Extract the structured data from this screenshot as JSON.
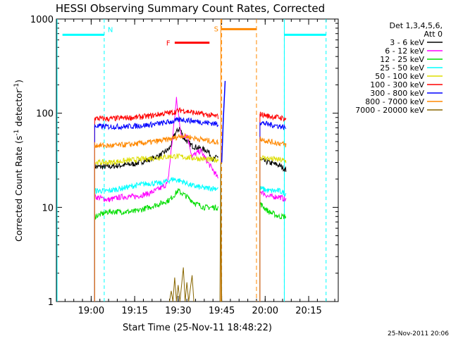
{
  "chart_data": {
    "type": "line",
    "title": "HESSI Observing Summary Count Rates, Corrected",
    "xlabel": "Start Time (25-Nov-11 18:48:22)",
    "ylabel_main": "Corrected Count Rate (s",
    "ylabel_sup1": "-1",
    "ylabel_mid": " detector",
    "ylabel_sup2": "-1",
    "ylabel_end": ")",
    "yscale": "log",
    "ylim": [
      1,
      1000
    ],
    "xlim_minutes": [
      18.8,
      20.42
    ],
    "x_ticks": [
      {
        "label": "19:00",
        "t": 19.0
      },
      {
        "label": "19:15",
        "t": 19.25
      },
      {
        "label": "19:30",
        "t": 19.5
      },
      {
        "label": "19:45",
        "t": 19.75
      },
      {
        "label": "20:00",
        "t": 20.0
      },
      {
        "label": "20:15",
        "t": 20.25
      }
    ],
    "y_ticks": [
      {
        "label": "1",
        "v": 1
      },
      {
        "label": "10",
        "v": 10
      },
      {
        "label": "100",
        "v": 100
      },
      {
        "label": "1000",
        "v": 1000
      }
    ],
    "legend": {
      "placement": "right",
      "header": [
        "Det 1,3,4,5,6,",
        "Att 0"
      ],
      "entries": [
        {
          "label": "3 - 6 keV",
          "color": "#000000"
        },
        {
          "label": "6 - 12 keV",
          "color": "#ff00ff"
        },
        {
          "label": "12 - 25 keV",
          "color": "#00dd00"
        },
        {
          "label": "25 - 50 keV",
          "color": "#00ffff"
        },
        {
          "label": "50 - 100 keV",
          "color": "#dddd00"
        },
        {
          "label": "100 - 300 keV",
          "color": "#ff0000"
        },
        {
          "label": "300 - 800 keV",
          "color": "#0000ff"
        },
        {
          "label": "800 - 7000 keV",
          "color": "#ff8800"
        },
        {
          "label": "7000 - 20000 keV",
          "color": "#886600"
        }
      ]
    },
    "annotations": {
      "N_label": "N",
      "F_label": "F",
      "S_label": "S",
      "night_segments": [
        [
          18.835,
          19.075
        ],
        [
          20.11,
          20.35
        ]
      ],
      "night_boundaries": [
        19.075,
        20.11,
        20.35
      ],
      "flare_segment": [
        19.48,
        19.68
      ],
      "saa_segment": [
        19.75,
        19.95
      ],
      "saa_boundaries": [
        19.75,
        19.95
      ],
      "night_level": 680,
      "saa_level": 780,
      "flare_level": 560
    },
    "series": [
      {
        "name": "3 - 6 keV",
        "color": "#000000",
        "segments": [
          [
            [
              19.02,
              27
            ],
            [
              19.1,
              27
            ],
            [
              19.18,
              28
            ],
            [
              19.25,
              29
            ],
            [
              19.33,
              32
            ],
            [
              19.4,
              36
            ],
            [
              19.45,
              42
            ],
            [
              19.48,
              60
            ],
            [
              19.51,
              70
            ],
            [
              19.53,
              55
            ],
            [
              19.58,
              45
            ],
            [
              19.63,
              42
            ],
            [
              19.67,
              40
            ],
            [
              19.7,
              32
            ],
            [
              19.73,
              35
            ]
          ],
          [
            [
              19.97,
              32
            ],
            [
              20.02,
              30
            ],
            [
              20.08,
              28
            ],
            [
              20.12,
              25
            ]
          ]
        ]
      },
      {
        "name": "6 - 12 keV",
        "color": "#ff00ff",
        "segments": [
          [
            [
              19.02,
              13
            ],
            [
              19.1,
              12
            ],
            [
              19.18,
              13
            ],
            [
              19.25,
              13
            ],
            [
              19.33,
              14
            ],
            [
              19.4,
              16
            ],
            [
              19.44,
              18
            ],
            [
              19.47,
              60
            ],
            [
              19.49,
              140
            ],
            [
              19.52,
              55
            ],
            [
              19.55,
              60
            ],
            [
              19.58,
              35
            ],
            [
              19.63,
              40
            ],
            [
              19.67,
              30
            ],
            [
              19.7,
              25
            ],
            [
              19.73,
              20
            ]
          ],
          [
            [
              19.97,
              15
            ],
            [
              20.02,
              13
            ],
            [
              20.08,
              13
            ],
            [
              20.12,
              12
            ]
          ]
        ]
      },
      {
        "name": "12 - 25 keV",
        "color": "#00dd00",
        "segments": [
          [
            [
              19.02,
              8
            ],
            [
              19.1,
              9
            ],
            [
              19.18,
              9
            ],
            [
              19.25,
              9
            ],
            [
              19.33,
              10
            ],
            [
              19.4,
              11
            ],
            [
              19.45,
              12
            ],
            [
              19.5,
              15
            ],
            [
              19.55,
              13
            ],
            [
              19.6,
              11
            ],
            [
              19.65,
              10
            ],
            [
              19.73,
              10
            ]
          ],
          [
            [
              19.97,
              11
            ],
            [
              20.02,
              9
            ],
            [
              20.08,
              8
            ],
            [
              20.12,
              8
            ]
          ]
        ]
      },
      {
        "name": "25 - 50 keV",
        "color": "#00ffff",
        "segments": [
          [
            [
              19.02,
              15
            ],
            [
              19.1,
              15
            ],
            [
              19.18,
              16
            ],
            [
              19.25,
              17
            ],
            [
              19.33,
              18
            ],
            [
              19.4,
              18
            ],
            [
              19.47,
              20
            ],
            [
              19.52,
              19
            ],
            [
              19.58,
              17
            ],
            [
              19.65,
              16
            ],
            [
              19.73,
              16
            ]
          ],
          [
            [
              19.97,
              16
            ],
            [
              20.02,
              15
            ],
            [
              20.08,
              15
            ],
            [
              20.12,
              14
            ]
          ]
        ]
      },
      {
        "name": "50 - 100 keV",
        "color": "#dddd00",
        "segments": [
          [
            [
              19.02,
              30
            ],
            [
              19.1,
              30
            ],
            [
              19.18,
              31
            ],
            [
              19.25,
              32
            ],
            [
              19.33,
              33
            ],
            [
              19.4,
              34
            ],
            [
              19.48,
              35
            ],
            [
              19.55,
              34
            ],
            [
              19.62,
              33
            ],
            [
              19.68,
              32
            ],
            [
              19.73,
              32
            ]
          ],
          [
            [
              19.97,
              34
            ],
            [
              20.02,
              33
            ],
            [
              20.08,
              32
            ],
            [
              20.12,
              31
            ]
          ]
        ]
      },
      {
        "name": "100 - 300 keV",
        "color": "#ff0000",
        "segments": [
          [
            [
              19.02,
              88
            ],
            [
              19.1,
              87
            ],
            [
              19.18,
              89
            ],
            [
              19.25,
              90
            ],
            [
              19.33,
              93
            ],
            [
              19.4,
              98
            ],
            [
              19.47,
              102
            ],
            [
              19.52,
              108
            ],
            [
              19.58,
              102
            ],
            [
              19.65,
              97
            ],
            [
              19.7,
              94
            ],
            [
              19.73,
              92
            ]
          ],
          [
            [
              19.97,
              98
            ],
            [
              20.02,
              93
            ],
            [
              20.08,
              90
            ],
            [
              20.12,
              87
            ]
          ]
        ]
      },
      {
        "name": "300 - 800 keV",
        "color": "#0000ff",
        "segments": [
          [
            [
              19.02,
              73
            ],
            [
              19.1,
              72
            ],
            [
              19.18,
              72
            ],
            [
              19.25,
              73
            ],
            [
              19.33,
              75
            ],
            [
              19.4,
              78
            ],
            [
              19.47,
              82
            ],
            [
              19.52,
              86
            ],
            [
              19.58,
              83
            ],
            [
              19.65,
              80
            ],
            [
              19.7,
              78
            ],
            [
              19.73,
              76
            ]
          ],
          [
            [
              19.97,
              80
            ],
            [
              20.02,
              76
            ],
            [
              20.08,
              73
            ],
            [
              20.12,
              70
            ]
          ]
        ]
      },
      {
        "name": "800 - 7000 keV",
        "color": "#ff8800",
        "segments": [
          [
            [
              19.02,
              46
            ],
            [
              19.1,
              45
            ],
            [
              19.18,
              46
            ],
            [
              19.25,
              47
            ],
            [
              19.33,
              49
            ],
            [
              19.4,
              51
            ],
            [
              19.47,
              54
            ],
            [
              19.52,
              58
            ],
            [
              19.58,
              55
            ],
            [
              19.65,
              52
            ],
            [
              19.7,
              50
            ],
            [
              19.73,
              49
            ]
          ],
          [
            [
              19.97,
              54
            ],
            [
              20.02,
              50
            ],
            [
              20.08,
              48
            ],
            [
              20.12,
              46
            ]
          ]
        ]
      },
      {
        "name": "7000 - 20000 keV",
        "color": "#886600",
        "segments": [
          [
            [
              19.45,
              1
            ],
            [
              19.46,
              1.3
            ],
            [
              19.47,
              1
            ],
            [
              19.48,
              1.8
            ],
            [
              19.49,
              1
            ],
            [
              19.5,
              1.5
            ],
            [
              19.51,
              1
            ],
            [
              19.53,
              2.3
            ],
            [
              19.54,
              1
            ],
            [
              19.55,
              1.6
            ],
            [
              19.56,
              1
            ],
            [
              19.58,
              1.9
            ],
            [
              19.59,
              1
            ]
          ],
          [
            [
              19.74,
              1
            ],
            [
              19.745,
              30
            ],
            [
              19.75,
              1
            ]
          ]
        ]
      }
    ],
    "spike": {
      "color": "#0000ff",
      "points": [
        [
          19.75,
          30
        ],
        [
          19.76,
          90
        ],
        [
          19.77,
          220
        ]
      ]
    },
    "timestamp": "25-Nov-2011 20:06"
  }
}
